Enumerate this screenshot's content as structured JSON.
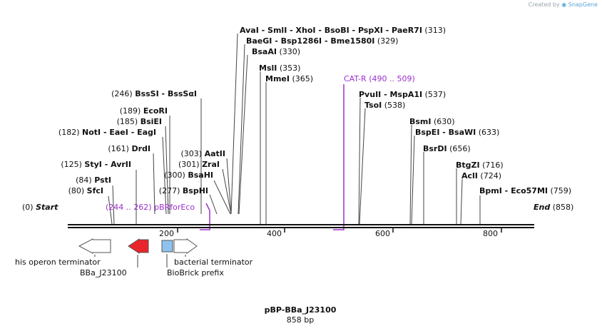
{
  "credit": {
    "prefix": "Created by",
    "brand": "SnapGene"
  },
  "title": "pBP-BBa_J23100",
  "length_text": "858 bp",
  "ends": {
    "start_label": "Start",
    "start_pos": "(0)",
    "end_label": "End",
    "end_pos": "(858)"
  },
  "ruler_ticks": [
    "200",
    "400",
    "600",
    "800"
  ],
  "sites": {
    "s313": {
      "name": "AvaI",
      "others": [
        "SmlI",
        "XhoI",
        "BsoBI",
        "PspXI",
        "PaeR7I"
      ],
      "pos": "(313)"
    },
    "s329": {
      "name": "BaeGI",
      "others": [
        "Bsp1286I",
        "Bme1580I"
      ],
      "pos": "(329)"
    },
    "s330": {
      "name": "BsaAI",
      "pos": "(330)"
    },
    "s353": {
      "name": "MslI",
      "pos": "(353)"
    },
    "s365": {
      "name": "MmeI",
      "pos": "(365)"
    },
    "s537": {
      "name": "PvuII",
      "others": [
        "MspA1I"
      ],
      "pos": "(537)"
    },
    "s538": {
      "name": "TsoI",
      "pos": "(538)"
    },
    "s630": {
      "name": "BsmI",
      "pos": "(630)"
    },
    "s633": {
      "name": "BspEI",
      "others": [
        "BsaWI"
      ],
      "pos": "(633)"
    },
    "s656": {
      "name": "BsrDI",
      "pos": "(656)"
    },
    "s716": {
      "name": "BtgZI",
      "pos": "(716)"
    },
    "s724": {
      "name": "AclI",
      "pos": "(724)"
    },
    "s759": {
      "name": "BpmI",
      "others": [
        "Eco57MI"
      ],
      "pos": "(759)"
    },
    "s246": {
      "name": "BssSI",
      "others": [
        "BssSαI"
      ],
      "pos": "(246)"
    },
    "s189": {
      "name": "EcoRI",
      "pos": "(189)"
    },
    "s185": {
      "name": "BsiEI",
      "pos": "(185)"
    },
    "s182": {
      "name": "NotI",
      "others": [
        "EaeI",
        "EagI"
      ],
      "pos": "(182)"
    },
    "s161": {
      "name": "DrdI",
      "pos": "(161)"
    },
    "s125": {
      "name": "StyI",
      "others": [
        "AvrII"
      ],
      "pos": "(125)"
    },
    "s84": {
      "name": "PstI",
      "pos": "(84)"
    },
    "s80": {
      "name": "SfcI",
      "pos": "(80)"
    },
    "s303": {
      "name": "AatII",
      "pos": "(303)"
    },
    "s301": {
      "name": "ZraI",
      "pos": "(301)"
    },
    "s300": {
      "name": "BsaHI",
      "pos": "(300)"
    },
    "s277": {
      "name": "BspHI",
      "pos": "(277)"
    }
  },
  "primers": {
    "cat_r": {
      "name": "CAT-R",
      "range": "(490 .. 509)"
    },
    "pbr": {
      "name": "pBRforEco",
      "range": "(244 .. 262)"
    }
  },
  "features": {
    "his_term": "his operon terminator",
    "bba": "BBa_J23100",
    "biobrick": "BioBrick prefix",
    "bact_term": "bacterial terminator"
  },
  "colors": {
    "promoter": "#e8262a",
    "prefix": "#8fc3ef",
    "primer": "#9b30c9",
    "terminator": "#ffffff"
  }
}
